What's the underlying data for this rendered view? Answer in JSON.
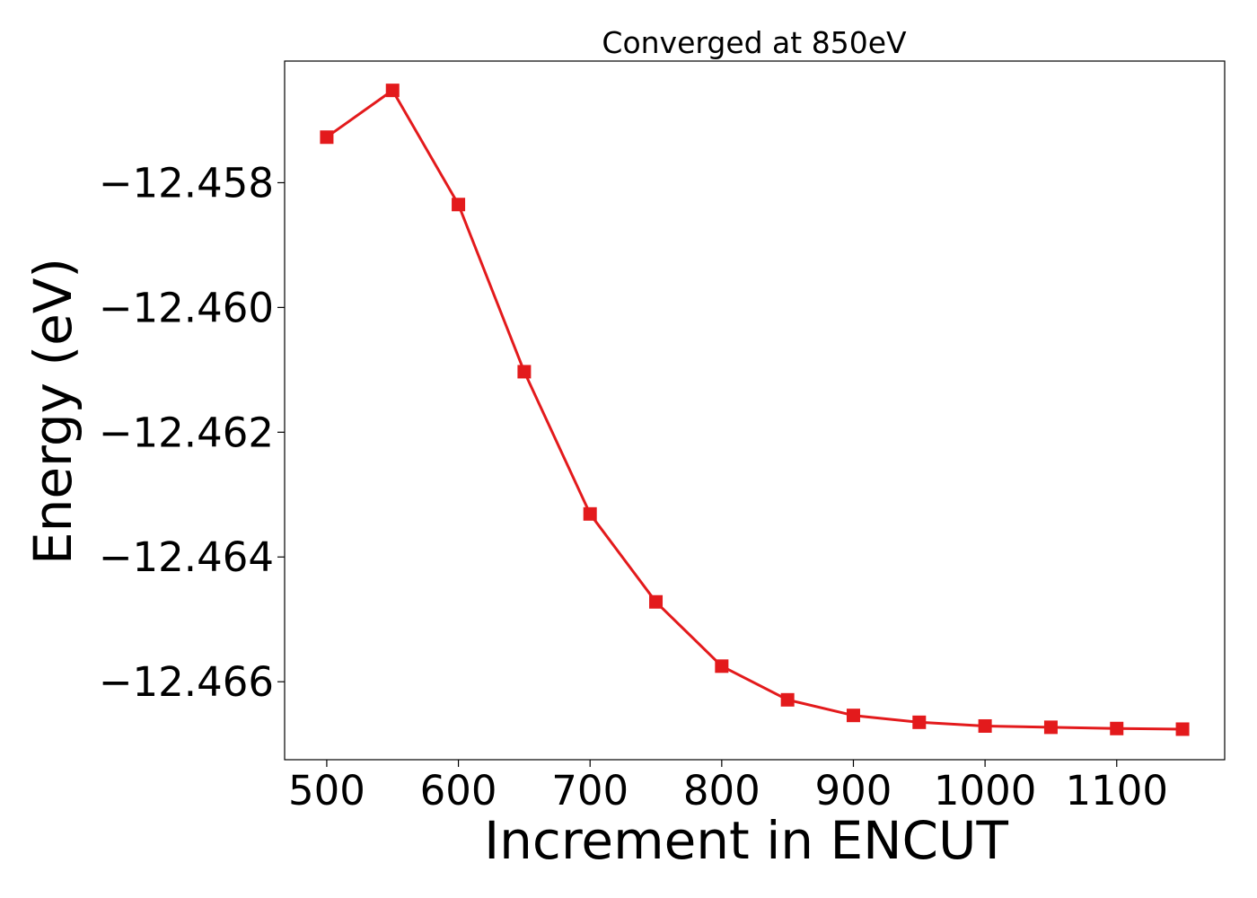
{
  "chart_data": {
    "type": "line",
    "title": "Converged at 850eV",
    "xlabel": "Increment in ENCUT",
    "ylabel": "Energy (eV)",
    "xlim": [
      468,
      1182
    ],
    "ylim": [
      -12.46725,
      -12.45605
    ],
    "x_ticks": [
      500,
      600,
      700,
      800,
      900,
      1000,
      1100
    ],
    "x_tick_labels": [
      "500",
      "600",
      "700",
      "800",
      "900",
      "1000",
      "1100"
    ],
    "y_ticks": [
      -12.458,
      -12.46,
      -12.462,
      -12.464,
      -12.466
    ],
    "y_tick_labels": [
      "−12.458",
      "−12.460",
      "−12.462",
      "−12.464",
      "−12.466"
    ],
    "grid": false,
    "series": [
      {
        "color": "#e31a1c",
        "marker": "square",
        "x": [
          500,
          550,
          600,
          650,
          700,
          750,
          800,
          850,
          900,
          950,
          1000,
          1050,
          1100,
          1150
        ],
        "y": [
          -12.45727,
          -12.45652,
          -12.45835,
          -12.46103,
          -12.46331,
          -12.46472,
          -12.46575,
          -12.46629,
          -12.46654,
          -12.46665,
          -12.46671,
          -12.46673,
          -12.46675,
          -12.46676
        ]
      }
    ]
  }
}
